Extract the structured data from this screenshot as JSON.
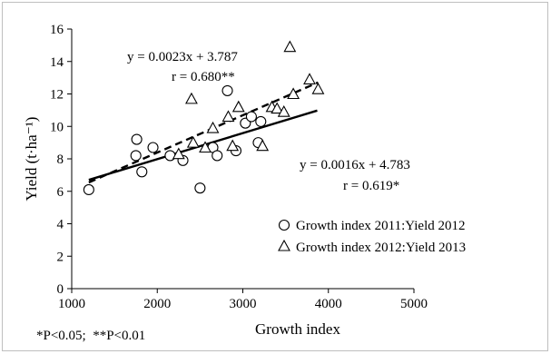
{
  "chart_data": {
    "type": "scatter",
    "xlabel": "Growth index",
    "ylabel": "Yield (t·ha⁻¹)",
    "xlim": [
      1000,
      5000
    ],
    "ylim": [
      0,
      16
    ],
    "xticks": [
      1000,
      2000,
      3000,
      4000,
      5000
    ],
    "yticks": [
      0,
      2,
      4,
      6,
      8,
      10,
      12,
      14,
      16
    ],
    "grid": false,
    "legend_position": "bottom-right",
    "series": [
      {
        "name": "Growth index 2011:Yield 2012",
        "marker": "circle",
        "points": [
          [
            1200,
            6.1
          ],
          [
            1750,
            8.2
          ],
          [
            1760,
            9.2
          ],
          [
            1820,
            7.2
          ],
          [
            1950,
            8.7
          ],
          [
            2150,
            8.2
          ],
          [
            2300,
            7.9
          ],
          [
            2500,
            6.2
          ],
          [
            2650,
            8.7
          ],
          [
            2700,
            8.2
          ],
          [
            2820,
            12.2
          ],
          [
            2920,
            8.5
          ],
          [
            3030,
            10.2
          ],
          [
            3100,
            10.6
          ],
          [
            3180,
            9.0
          ],
          [
            3210,
            10.3
          ]
        ],
        "trendline": {
          "slope": 0.0016,
          "intercept": 4.783,
          "x_range": [
            1200,
            3870
          ],
          "style": "solid",
          "equation": "y = 0.0016x + 4.783",
          "r_label": "r = 0.619*"
        }
      },
      {
        "name": "Growth index 2012:Yield 2013",
        "marker": "triangle",
        "points": [
          [
            2250,
            8.3
          ],
          [
            2420,
            9.0
          ],
          [
            2400,
            11.7
          ],
          [
            2560,
            8.7
          ],
          [
            2650,
            9.9
          ],
          [
            2830,
            10.6
          ],
          [
            2880,
            8.8
          ],
          [
            2950,
            11.2
          ],
          [
            3230,
            8.8
          ],
          [
            3340,
            11.2
          ],
          [
            3400,
            11.1
          ],
          [
            3480,
            10.9
          ],
          [
            3550,
            14.9
          ],
          [
            3590,
            12.0
          ],
          [
            3780,
            12.9
          ],
          [
            3880,
            12.3
          ]
        ],
        "trendline": {
          "slope": 0.0023,
          "intercept": 3.787,
          "x_range": [
            1200,
            3880
          ],
          "style": "dashed",
          "equation": "y = 0.0023x + 3.787",
          "r_label": "r = 0.680**"
        }
      }
    ],
    "footnote": "*P<0.05;  **P<0.01"
  }
}
